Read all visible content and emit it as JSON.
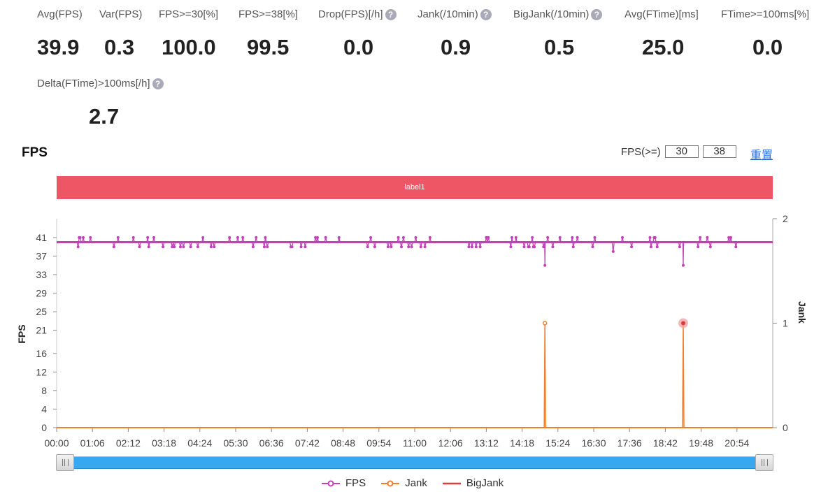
{
  "metrics": [
    {
      "label": "Avg(FPS)",
      "value": "39.9",
      "help": false
    },
    {
      "label": "Var(FPS)",
      "value": "0.3",
      "help": false
    },
    {
      "label": "FPS>=30[%]",
      "value": "100.0",
      "help": false
    },
    {
      "label": "FPS>=38[%]",
      "value": "99.5",
      "help": false
    },
    {
      "label": "Drop(FPS)[/h]",
      "value": "0.0",
      "help": true
    },
    {
      "label": "Jank(/10min)",
      "value": "0.9",
      "help": true
    },
    {
      "label": "BigJank(/10min)",
      "value": "0.5",
      "help": true
    },
    {
      "label": "Avg(FTime)[ms]",
      "value": "25.0",
      "help": false
    },
    {
      "label": "FTime>=100ms[%]",
      "value": "0.0",
      "help": false
    },
    {
      "label": "Delta(FTime)>100ms[/h]",
      "value": "2.7",
      "help": true
    }
  ],
  "help_icon": "question-circle-icon",
  "chart_title": "FPS",
  "fps_threshold": {
    "label": "FPS(>=)",
    "low": "30",
    "high": "38"
  },
  "reset_label": "重置",
  "label_bar": "label1",
  "colors": {
    "fps": "#c340b8",
    "jank": "#f07e2c",
    "bigjank": "#e03c3c",
    "label_bar": "#ee5565",
    "slider": "#36a8ef"
  },
  "chart_data": {
    "type": "line",
    "x": [
      "00:00",
      "01:06",
      "02:12",
      "03:18",
      "04:24",
      "05:30",
      "06:36",
      "07:42",
      "08:48",
      "09:54",
      "11:00",
      "12:06",
      "13:12",
      "14:18",
      "15:24",
      "16:30",
      "17:36",
      "18:42",
      "19:48",
      "20:54"
    ],
    "y_left": {
      "label": "FPS",
      "ticks": [
        0,
        4,
        8,
        12,
        16,
        21,
        25,
        29,
        33,
        37,
        41
      ],
      "range": [
        0,
        41
      ]
    },
    "y_right": {
      "label": "Jank",
      "ticks": [
        0,
        1,
        2
      ],
      "range": [
        0,
        2
      ]
    },
    "x_range_minutes": [
      0,
      1320
    ],
    "series": [
      {
        "name": "FPS",
        "axis": "left",
        "baseline": 40,
        "dips": [
          {
            "time": "15:00",
            "value": 35
          },
          {
            "time": "19:15",
            "value": 35
          }
        ]
      },
      {
        "name": "Jank",
        "axis": "right",
        "baseline": 0,
        "spikes": [
          {
            "time": "15:00",
            "value": 1
          },
          {
            "time": "19:15",
            "value": 1
          }
        ]
      },
      {
        "name": "BigJank",
        "axis": "right",
        "baseline": 0,
        "spikes": []
      }
    ],
    "legend": [
      "FPS",
      "Jank",
      "BigJank"
    ],
    "legend_position": "bottom"
  }
}
